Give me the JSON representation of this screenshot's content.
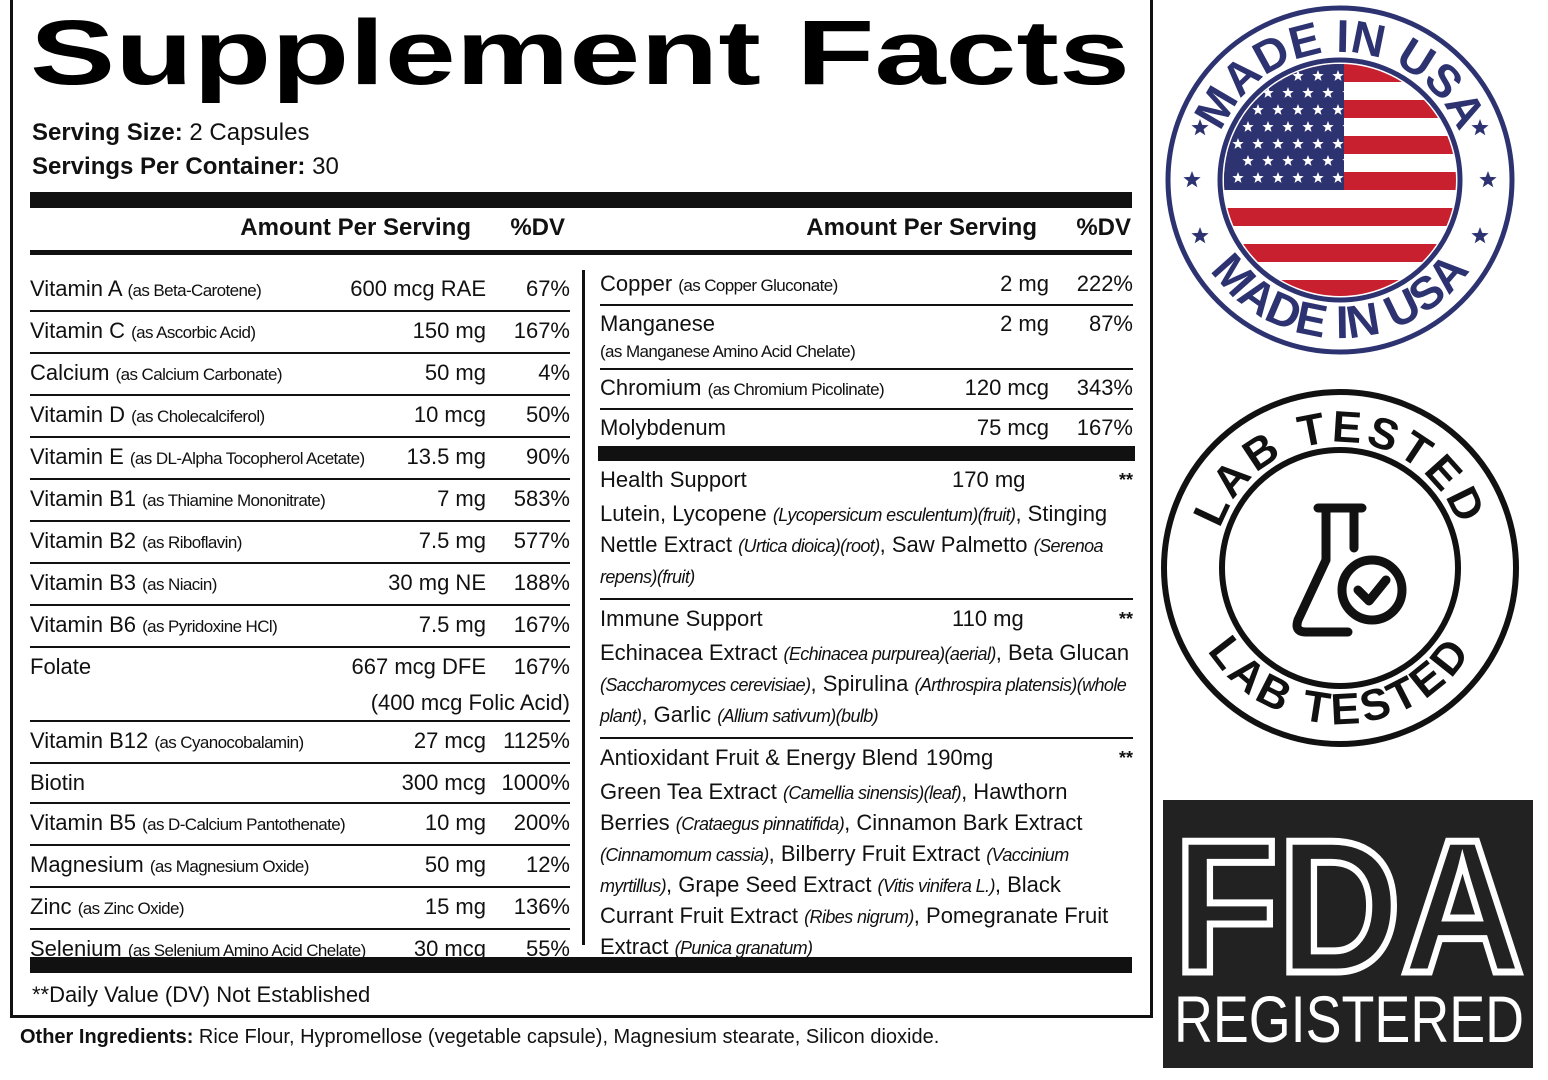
{
  "title": "Supplement Facts",
  "serving": [
    {
      "label": "Serving Size:",
      "value": "2 Capsules"
    },
    {
      "label": "Servings Per Container:",
      "value": "30"
    }
  ],
  "headers": {
    "left": [
      "Amount Per Serving",
      "%DV"
    ],
    "right": [
      "Amount Per Serving",
      "%DV"
    ]
  },
  "left_rows": [
    {
      "name": "Vitamin A",
      "form": "(as Beta-Carotene)",
      "amount": "600 mcg RAE",
      "dv": "67%"
    },
    {
      "name": "Vitamin C",
      "form": "(as Ascorbic Acid)",
      "amount": "150 mg",
      "dv": "167%"
    },
    {
      "name": "Calcium",
      "form": "(as Calcium Carbonate)",
      "amount": "50 mg",
      "dv": "4%"
    },
    {
      "name": "Vitamin D",
      "form": "(as Cholecalciferol)",
      "amount": "10 mcg",
      "dv": "50%"
    },
    {
      "name": "Vitamin E",
      "form": "(as DL-Alpha Tocopherol Acetate)",
      "amount": "13.5 mg",
      "dv": "90%"
    },
    {
      "name": "Vitamin B1",
      "form": "(as Thiamine Mononitrate)",
      "amount": "7 mg",
      "dv": "583%"
    },
    {
      "name": "Vitamin B2",
      "form": "(as Riboflavin)",
      "amount": "7.5 mg",
      "dv": "577%"
    },
    {
      "name": "Vitamin B3",
      "form": "(as Niacin)",
      "amount": "30 mg NE",
      "dv": "188%"
    },
    {
      "name": "Vitamin B6",
      "form": "(as Pyridoxine HCl)",
      "amount": "7.5 mg",
      "dv": "167%"
    },
    {
      "name": "Folate",
      "amount": "667 mcg DFE",
      "dv": "167%",
      "note": "(400 mcg Folic Acid)"
    },
    {
      "name": "Vitamin B12",
      "form": "(as Cyanocobalamin)",
      "amount": "27 mcg",
      "dv": "1125%"
    },
    {
      "name": "Biotin",
      "amount": "300 mcg",
      "dv": "1000%"
    },
    {
      "name": "Vitamin B5",
      "form": "(as D-Calcium Pantothenate)",
      "amount": "10 mg",
      "dv": "200%"
    },
    {
      "name": "Magnesium",
      "form": "(as Magnesium Oxide)",
      "amount": "50 mg",
      "dv": "12%"
    },
    {
      "name": "Zinc",
      "form": "(as Zinc Oxide)",
      "amount": "15 mg",
      "dv": "136%"
    },
    {
      "name": "Selenium",
      "form": "(as Selenium Amino Acid Chelate)",
      "amount": "30 mcg",
      "dv": "55%"
    }
  ],
  "right_rows": [
    {
      "name": "Copper",
      "form": "(as Copper Gluconate)",
      "amount": "2 mg",
      "dv": "222%"
    },
    {
      "name": "Manganese",
      "form_below": "(as Manganese Amino Acid Chelate)",
      "amount": "2 mg",
      "dv": "87%"
    },
    {
      "name": "Chromium",
      "form": "(as Chromium Picolinate)",
      "amount": "120 mcg",
      "dv": "343%"
    },
    {
      "name": "Molybdenum",
      "amount": "75 mcg",
      "dv": "167%"
    }
  ],
  "blends": [
    {
      "name": "Health Support",
      "amount": "170 mg",
      "dv": "**",
      "ingredients": [
        {
          "text": "Lutein, Lycopene "
        },
        {
          "text": "(Lycopersicum esculentum)(fruit)",
          "italic": true
        },
        {
          "text": ", Stinging Nettle Extract "
        },
        {
          "text": "(Urtica dioica)(root)",
          "italic": true
        },
        {
          "text": ", Saw Palmetto "
        },
        {
          "text": "(Serenoa repens)(fruit)",
          "italic": true
        }
      ]
    },
    {
      "name": "Immune Support",
      "amount": "110 mg",
      "dv": "**",
      "ingredients": [
        {
          "text": "Echinacea Extract "
        },
        {
          "text": "(Echinacea purpurea)(aerial)",
          "italic": true
        },
        {
          "text": ", Beta Glucan "
        },
        {
          "text": "(Saccharomyces cerevisiae)",
          "italic": true
        },
        {
          "text": ", Spirulina "
        },
        {
          "text": "(Arthrospira platensis)(whole plant)",
          "italic": true
        },
        {
          "text": ", Garlic "
        },
        {
          "text": "(Allium sativum)(bulb)",
          "italic": true
        }
      ]
    },
    {
      "name": "Antioxidant Fruit & Energy Blend",
      "amount": "190mg",
      "dv": "**",
      "ingredients": [
        {
          "text": "Green Tea Extract "
        },
        {
          "text": "(Camellia sinensis)(leaf)",
          "italic": true
        },
        {
          "text": ", Hawthorn Berries "
        },
        {
          "text": "(Crataegus pinnatifida)",
          "italic": true
        },
        {
          "text": ", Cinnamon Bark Extract "
        },
        {
          "text": "(Cinnamomum cassia)",
          "italic": true
        },
        {
          "text": ", Bilberry Fruit Extract "
        },
        {
          "text": "(Vaccinium myrtillus)",
          "italic": true
        },
        {
          "text": ", Grape Seed Extract "
        },
        {
          "text": "(Vitis vinifera L.)",
          "italic": true
        },
        {
          "text": ", Black Currant Fruit Extract "
        },
        {
          "text": "(Ribes nigrum)",
          "italic": true
        },
        {
          "text": ", Pomegranate Fruit Extract "
        },
        {
          "text": "(Punica granatum)",
          "italic": true
        }
      ]
    }
  ],
  "footnote": "**Daily Value (DV) Not Established",
  "other_ingredients": {
    "label": "Other Ingredients:",
    "value": "Rice Flour, Hypromellose (vegetable capsule), Magnesium stearate, Silicon dioxide."
  },
  "badges": {
    "made_in_usa": {
      "top": "MADE IN USA",
      "bottom": "MADE IN USA"
    },
    "lab_tested": {
      "top": "LAB TESTED",
      "bottom": "LAB TESTED"
    },
    "fda": {
      "logo": "FDA",
      "text": "REGISTERED"
    }
  }
}
